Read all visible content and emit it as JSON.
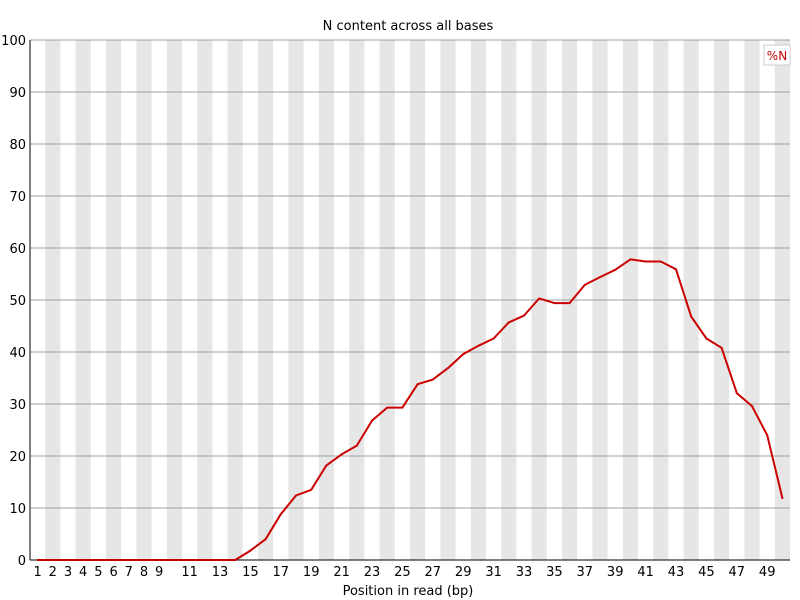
{
  "chart_data": {
    "type": "line",
    "title": "N content across all bases",
    "xlabel": "Position in read (bp)",
    "ylabel": "",
    "ylim": [
      0,
      100
    ],
    "yticks": [
      0,
      10,
      20,
      30,
      40,
      50,
      60,
      70,
      80,
      90,
      100
    ],
    "categories": [
      "1",
      "2",
      "3",
      "4",
      "5",
      "6",
      "7",
      "8",
      "9",
      "10",
      "11",
      "12",
      "13",
      "14",
      "15",
      "16",
      "17",
      "18",
      "19",
      "20",
      "21",
      "22",
      "23",
      "24",
      "25",
      "26",
      "27",
      "28",
      "29",
      "30",
      "31",
      "32",
      "33",
      "34",
      "35",
      "36",
      "37",
      "38",
      "39",
      "40",
      "41",
      "42",
      "43",
      "44",
      "45",
      "46",
      "47",
      "48",
      "49",
      "50"
    ],
    "tick_labels": [
      "1",
      "2",
      "3",
      "4",
      "5",
      "6",
      "7",
      "8",
      "9",
      "",
      "11",
      "",
      "13",
      "",
      "15",
      "",
      "17",
      "",
      "19",
      "",
      "21",
      "",
      "23",
      "",
      "25",
      "",
      "27",
      "",
      "29",
      "",
      "31",
      "",
      "33",
      "",
      "35",
      "",
      "37",
      "",
      "39",
      "",
      "41",
      "",
      "43",
      "",
      "45",
      "",
      "47",
      "",
      "49",
      ""
    ],
    "grid": true,
    "legend_position": "top-right",
    "series": [
      {
        "name": "%N",
        "color": "#cc0000",
        "values": [
          0,
          0,
          0,
          0,
          0,
          0,
          0,
          0,
          0,
          0,
          0,
          0,
          0,
          0,
          1.8,
          4,
          8.8,
          12.4,
          13.5,
          18.2,
          20.3,
          22,
          26.8,
          29.3,
          29.3,
          33.8,
          34.7,
          36.9,
          39.6,
          41.2,
          42.6,
          45.7,
          47,
          50.3,
          49.4,
          49.4,
          52.9,
          54.4,
          55.8,
          57.8,
          57.4,
          57.4,
          55.9,
          46.8,
          42.6,
          40.8,
          32.1,
          29.6,
          24,
          11.9
        ]
      }
    ]
  }
}
